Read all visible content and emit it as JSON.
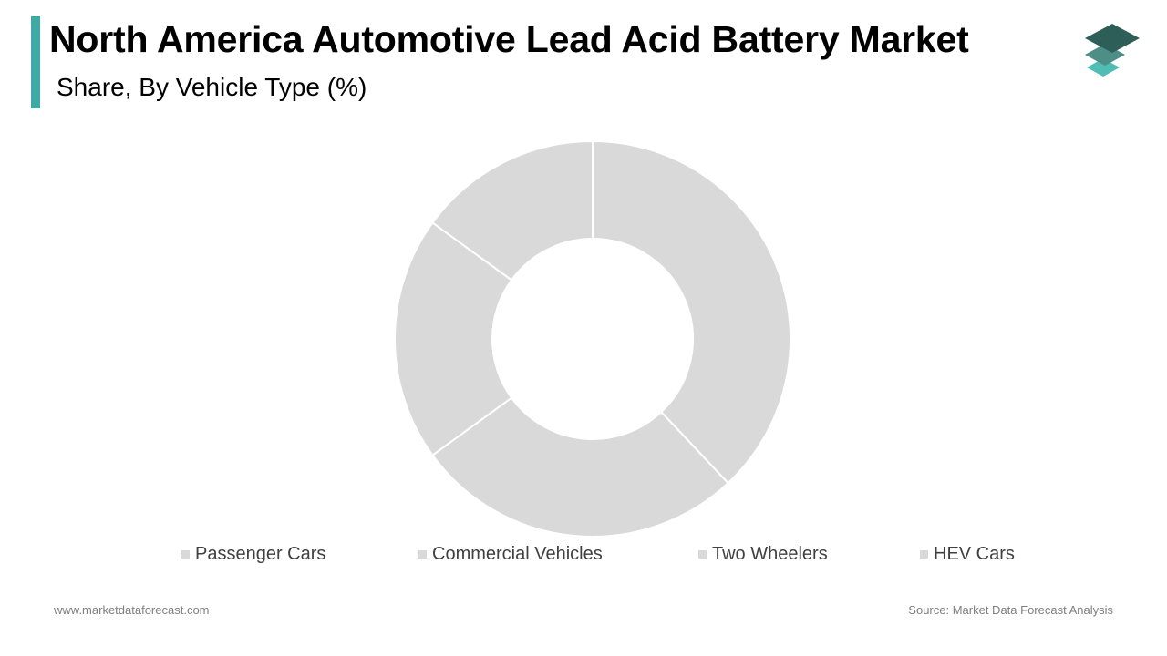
{
  "colors": {
    "accent": "#3fa9a3",
    "slice": "#d9d9d9",
    "slice_border": "#ffffff",
    "logo_dark": "#2e5e58",
    "logo_mid": "#4d8e86",
    "logo_light": "#4fbdb3"
  },
  "logo_icon": "stacked-layers-icon",
  "chart_data": {
    "type": "pie",
    "variant": "donut",
    "title": "North America Automotive Lead Acid Battery Market",
    "subtitle": "Share, By Vehicle Type (%)",
    "categories": [
      "Passenger Cars",
      "Commercial Vehicles",
      "Two Wheelers",
      "HEV Cars"
    ],
    "values": [
      38,
      27,
      20,
      15
    ],
    "legend_position": "bottom",
    "data_labels_shown": false
  },
  "footer": {
    "website": "www.marketdataforecast.com",
    "source": "Source: Market Data Forecast Analysis"
  }
}
